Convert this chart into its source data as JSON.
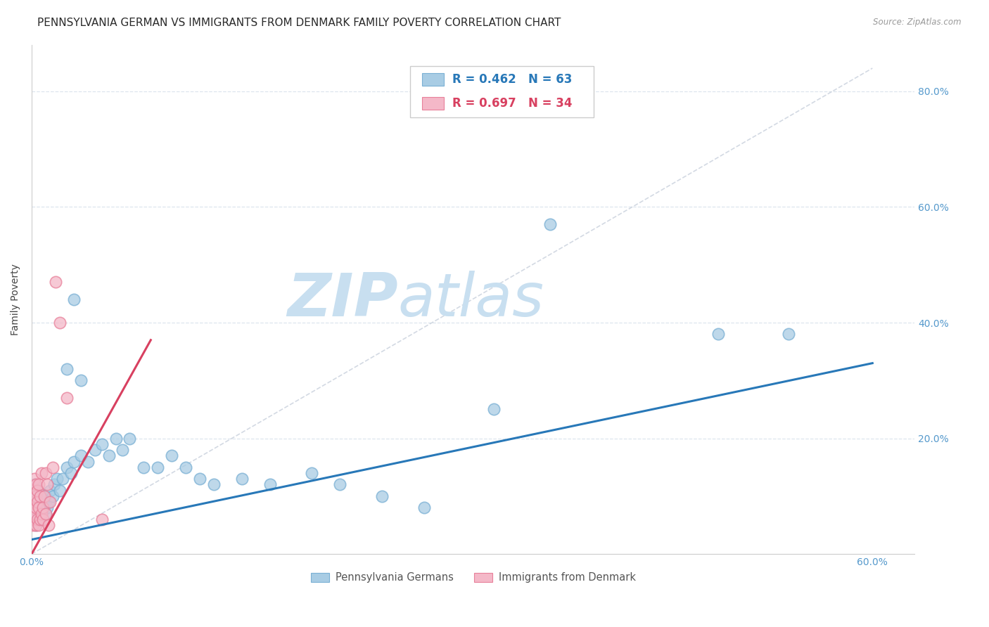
{
  "title": "PENNSYLVANIA GERMAN VS IMMIGRANTS FROM DENMARK FAMILY POVERTY CORRELATION CHART",
  "source": "Source: ZipAtlas.com",
  "ylabel": "Family Poverty",
  "xlim": [
    0.0,
    0.63
  ],
  "ylim": [
    0.0,
    0.88
  ],
  "yticks": [
    0.2,
    0.4,
    0.6,
    0.8
  ],
  "ytick_labels": [
    "20.0%",
    "40.0%",
    "60.0%",
    "80.0%"
  ],
  "xticks": [
    0.0,
    0.1,
    0.2,
    0.3,
    0.4,
    0.5,
    0.6
  ],
  "xtick_labels": [
    "0.0%",
    "",
    "",
    "",
    "",
    "",
    "60.0%"
  ],
  "blue_color": "#a8cce4",
  "blue_edge_color": "#7ab0d4",
  "pink_color": "#f4b8c8",
  "pink_edge_color": "#e8809a",
  "blue_line_color": "#2878b8",
  "pink_line_color": "#d84060",
  "legend_blue_text_color": "#2878b8",
  "legend_pink_text_color": "#d84060",
  "watermark_zip": "ZIP",
  "watermark_atlas": "atlas",
  "watermark_color": "#c8dff0",
  "R_blue": 0.462,
  "N_blue": 63,
  "R_pink": 0.697,
  "N_pink": 34,
  "legend1": "Pennsylvania Germans",
  "legend2": "Immigrants from Denmark",
  "blue_x": [
    0.001,
    0.001,
    0.002,
    0.002,
    0.002,
    0.002,
    0.003,
    0.003,
    0.003,
    0.003,
    0.004,
    0.004,
    0.004,
    0.005,
    0.005,
    0.005,
    0.006,
    0.006,
    0.007,
    0.007,
    0.008,
    0.008,
    0.009,
    0.01,
    0.01,
    0.011,
    0.012,
    0.013,
    0.015,
    0.016,
    0.018,
    0.02,
    0.022,
    0.025,
    0.028,
    0.03,
    0.035,
    0.04,
    0.045,
    0.05,
    0.055,
    0.06,
    0.065,
    0.07,
    0.08,
    0.09,
    0.1,
    0.11,
    0.12,
    0.13,
    0.15,
    0.17,
    0.2,
    0.22,
    0.25,
    0.28,
    0.03,
    0.025,
    0.035,
    0.33,
    0.37,
    0.49,
    0.54
  ],
  "blue_y": [
    0.07,
    0.09,
    0.06,
    0.08,
    0.1,
    0.12,
    0.07,
    0.09,
    0.05,
    0.11,
    0.06,
    0.08,
    0.1,
    0.07,
    0.09,
    0.11,
    0.06,
    0.08,
    0.07,
    0.1,
    0.06,
    0.09,
    0.08,
    0.07,
    0.1,
    0.08,
    0.09,
    0.11,
    0.1,
    0.12,
    0.13,
    0.11,
    0.13,
    0.15,
    0.14,
    0.16,
    0.17,
    0.16,
    0.18,
    0.19,
    0.17,
    0.2,
    0.18,
    0.2,
    0.15,
    0.15,
    0.17,
    0.15,
    0.13,
    0.12,
    0.13,
    0.12,
    0.14,
    0.12,
    0.1,
    0.08,
    0.44,
    0.32,
    0.3,
    0.25,
    0.57,
    0.38,
    0.38
  ],
  "pink_x": [
    0.001,
    0.001,
    0.001,
    0.002,
    0.002,
    0.002,
    0.002,
    0.003,
    0.003,
    0.003,
    0.003,
    0.004,
    0.004,
    0.004,
    0.005,
    0.005,
    0.005,
    0.006,
    0.006,
    0.007,
    0.007,
    0.008,
    0.008,
    0.009,
    0.01,
    0.01,
    0.011,
    0.012,
    0.013,
    0.015,
    0.017,
    0.02,
    0.025,
    0.05
  ],
  "pink_y": [
    0.05,
    0.08,
    0.11,
    0.06,
    0.09,
    0.07,
    0.13,
    0.05,
    0.08,
    0.1,
    0.12,
    0.06,
    0.09,
    0.11,
    0.05,
    0.08,
    0.12,
    0.06,
    0.1,
    0.07,
    0.14,
    0.08,
    0.06,
    0.1,
    0.07,
    0.14,
    0.12,
    0.05,
    0.09,
    0.15,
    0.47,
    0.4,
    0.27,
    0.06
  ],
  "grid_color": "#dde5ee",
  "background_color": "#ffffff",
  "title_fontsize": 11,
  "axis_label_fontsize": 10,
  "tick_fontsize": 10,
  "axis_tick_color": "#5599cc",
  "ref_line_color": "#c8d0dc",
  "blue_line_x0": 0.0,
  "blue_line_y0": 0.025,
  "blue_line_x1": 0.6,
  "blue_line_y1": 0.33,
  "pink_line_x0": 0.0,
  "pink_line_y0": 0.0,
  "pink_line_x1": 0.085,
  "pink_line_y1": 0.37
}
